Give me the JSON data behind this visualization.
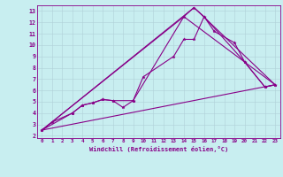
{
  "xlabel": "Windchill (Refroidissement éolien,°C)",
  "bg_color": "#c8eef0",
  "grid_color": "#b0d0d8",
  "line_color": "#880088",
  "xlim": [
    -0.5,
    23.5
  ],
  "ylim": [
    1.8,
    13.5
  ],
  "xticks": [
    0,
    1,
    2,
    3,
    4,
    5,
    6,
    7,
    8,
    9,
    10,
    11,
    12,
    13,
    14,
    15,
    16,
    17,
    18,
    19,
    20,
    21,
    22,
    23
  ],
  "yticks": [
    2,
    3,
    4,
    5,
    6,
    7,
    8,
    9,
    10,
    11,
    12,
    13
  ],
  "series": [
    {
      "x": [
        0,
        1,
        3,
        4,
        5,
        6,
        7,
        8,
        9,
        10,
        13,
        14,
        15,
        16,
        17,
        19,
        20,
        22,
        23
      ],
      "y": [
        2.5,
        3.2,
        4.0,
        4.7,
        4.9,
        5.2,
        5.1,
        4.5,
        5.1,
        7.2,
        9.0,
        10.5,
        10.5,
        12.5,
        11.2,
        10.2,
        8.5,
        6.3,
        6.5
      ],
      "marker": true
    },
    {
      "x": [
        0,
        3,
        4,
        5,
        6,
        7,
        9,
        14,
        15,
        16,
        20,
        22,
        23
      ],
      "y": [
        2.5,
        4.0,
        4.7,
        4.9,
        5.2,
        5.1,
        5.1,
        12.5,
        13.3,
        12.5,
        8.5,
        6.3,
        6.5
      ],
      "marker": true
    },
    {
      "x": [
        0,
        23
      ],
      "y": [
        2.5,
        6.5
      ],
      "marker": false
    },
    {
      "x": [
        0,
        15,
        23
      ],
      "y": [
        2.5,
        13.3,
        6.5
      ],
      "marker": false
    },
    {
      "x": [
        0,
        14,
        23
      ],
      "y": [
        2.5,
        12.5,
        6.5
      ],
      "marker": false
    }
  ]
}
